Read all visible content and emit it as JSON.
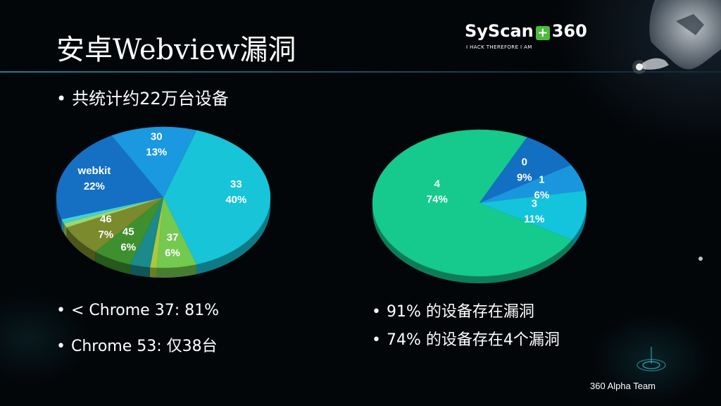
{
  "title": "安卓Webview漏洞",
  "logo": {
    "brand": "SyScan",
    "plus": "+",
    "suffix": "360",
    "tagline": "I HACK THEREFORE I AM"
  },
  "bullets": {
    "total": "共统计约22万台设备",
    "chrome37": "< Chrome 37:   81%",
    "chrome53": "Chrome 53:  仅38台",
    "vuln91": "91% 的设备存在漏洞",
    "vuln74": "74% 的设备存在4个漏洞"
  },
  "bullet_symbol": "•",
  "footer": "360 Alpha Team",
  "chart_data": [
    {
      "type": "pie",
      "slices": [
        {
          "label": "33",
          "percent": 40,
          "shown": "40%",
          "color": "#17c4d8"
        },
        {
          "label": "37",
          "percent": 6,
          "shown": "6%",
          "color": "#74c94f"
        },
        {
          "label": "",
          "percent": 1,
          "shown": "",
          "color": "#a9c940"
        },
        {
          "label": "",
          "percent": 3,
          "shown": "",
          "color": "#1a8a8c"
        },
        {
          "label": "45",
          "percent": 6,
          "shown": "6%",
          "color": "#3e8f2e"
        },
        {
          "label": "46",
          "percent": 7,
          "shown": "7%",
          "color": "#7a8a2c"
        },
        {
          "label": "",
          "percent": 1,
          "shown": "",
          "color": "#9bd86e"
        },
        {
          "label": "",
          "percent": 1,
          "shown": "",
          "color": "#3fd0d8"
        },
        {
          "label": "webkit",
          "percent": 22,
          "shown": "22%",
          "color": "#1570c4"
        },
        {
          "label": "30",
          "percent": 13,
          "shown": "13%",
          "color": "#1a98e0"
        }
      ]
    },
    {
      "type": "pie",
      "slices": [
        {
          "label": "4",
          "percent": 74,
          "shown": "74%",
          "color": "#16c98c"
        },
        {
          "label": "0",
          "percent": 9,
          "shown": "9%",
          "color": "#136fc2"
        },
        {
          "label": "1",
          "percent": 6,
          "shown": "6%",
          "color": "#1a96de"
        },
        {
          "label": "3",
          "percent": 11,
          "shown": "11%",
          "color": "#14c4dc"
        }
      ]
    }
  ]
}
